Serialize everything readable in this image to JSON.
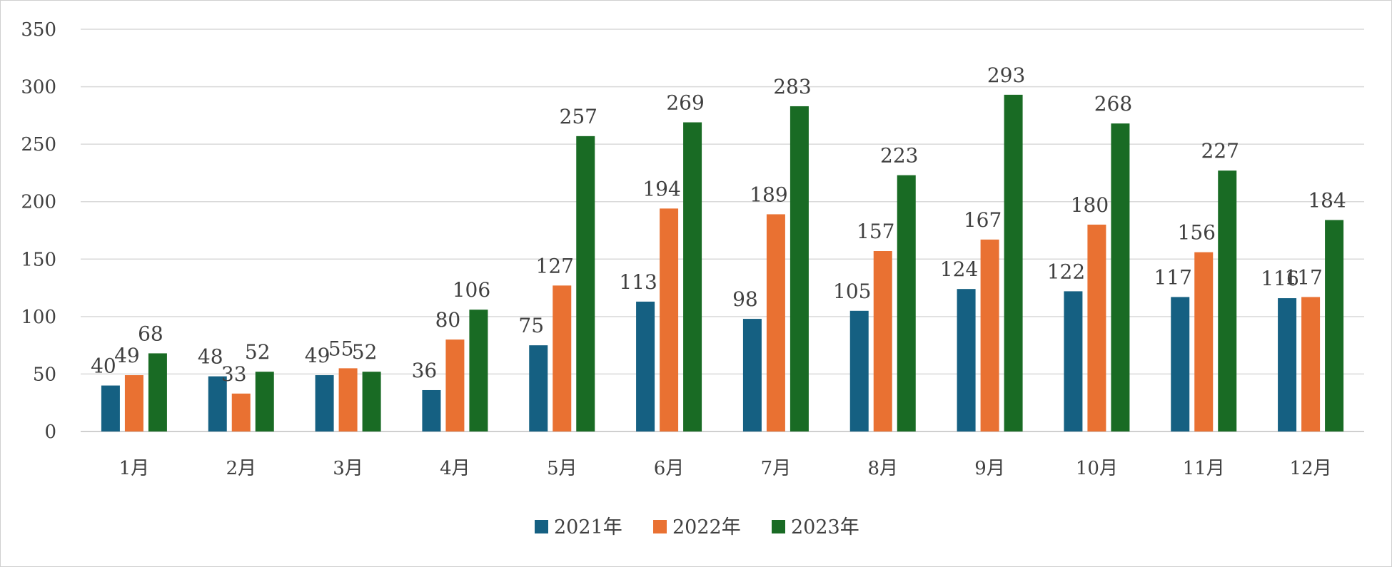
{
  "chart_data": {
    "type": "bar",
    "categories": [
      "1月",
      "2月",
      "3月",
      "4月",
      "5月",
      "6月",
      "7月",
      "8月",
      "9月",
      "10月",
      "11月",
      "12月"
    ],
    "series": [
      {
        "name": "2021年",
        "color": "#156082",
        "values": [
          40,
          48,
          49,
          36,
          75,
          113,
          98,
          105,
          124,
          122,
          117,
          116
        ]
      },
      {
        "name": "2022年",
        "color": "#E97132",
        "values": [
          49,
          33,
          55,
          80,
          127,
          194,
          189,
          157,
          167,
          180,
          156,
          117
        ]
      },
      {
        "name": "2023年",
        "color": "#196B24",
        "values": [
          68,
          52,
          52,
          106,
          257,
          269,
          283,
          223,
          293,
          268,
          227,
          184
        ]
      }
    ],
    "title": "",
    "xlabel": "",
    "ylabel": "",
    "ylim": [
      0,
      350
    ],
    "yticks": [
      0,
      50,
      100,
      150,
      200,
      250,
      300,
      350
    ],
    "grid": true,
    "legend_position": "bottom"
  }
}
